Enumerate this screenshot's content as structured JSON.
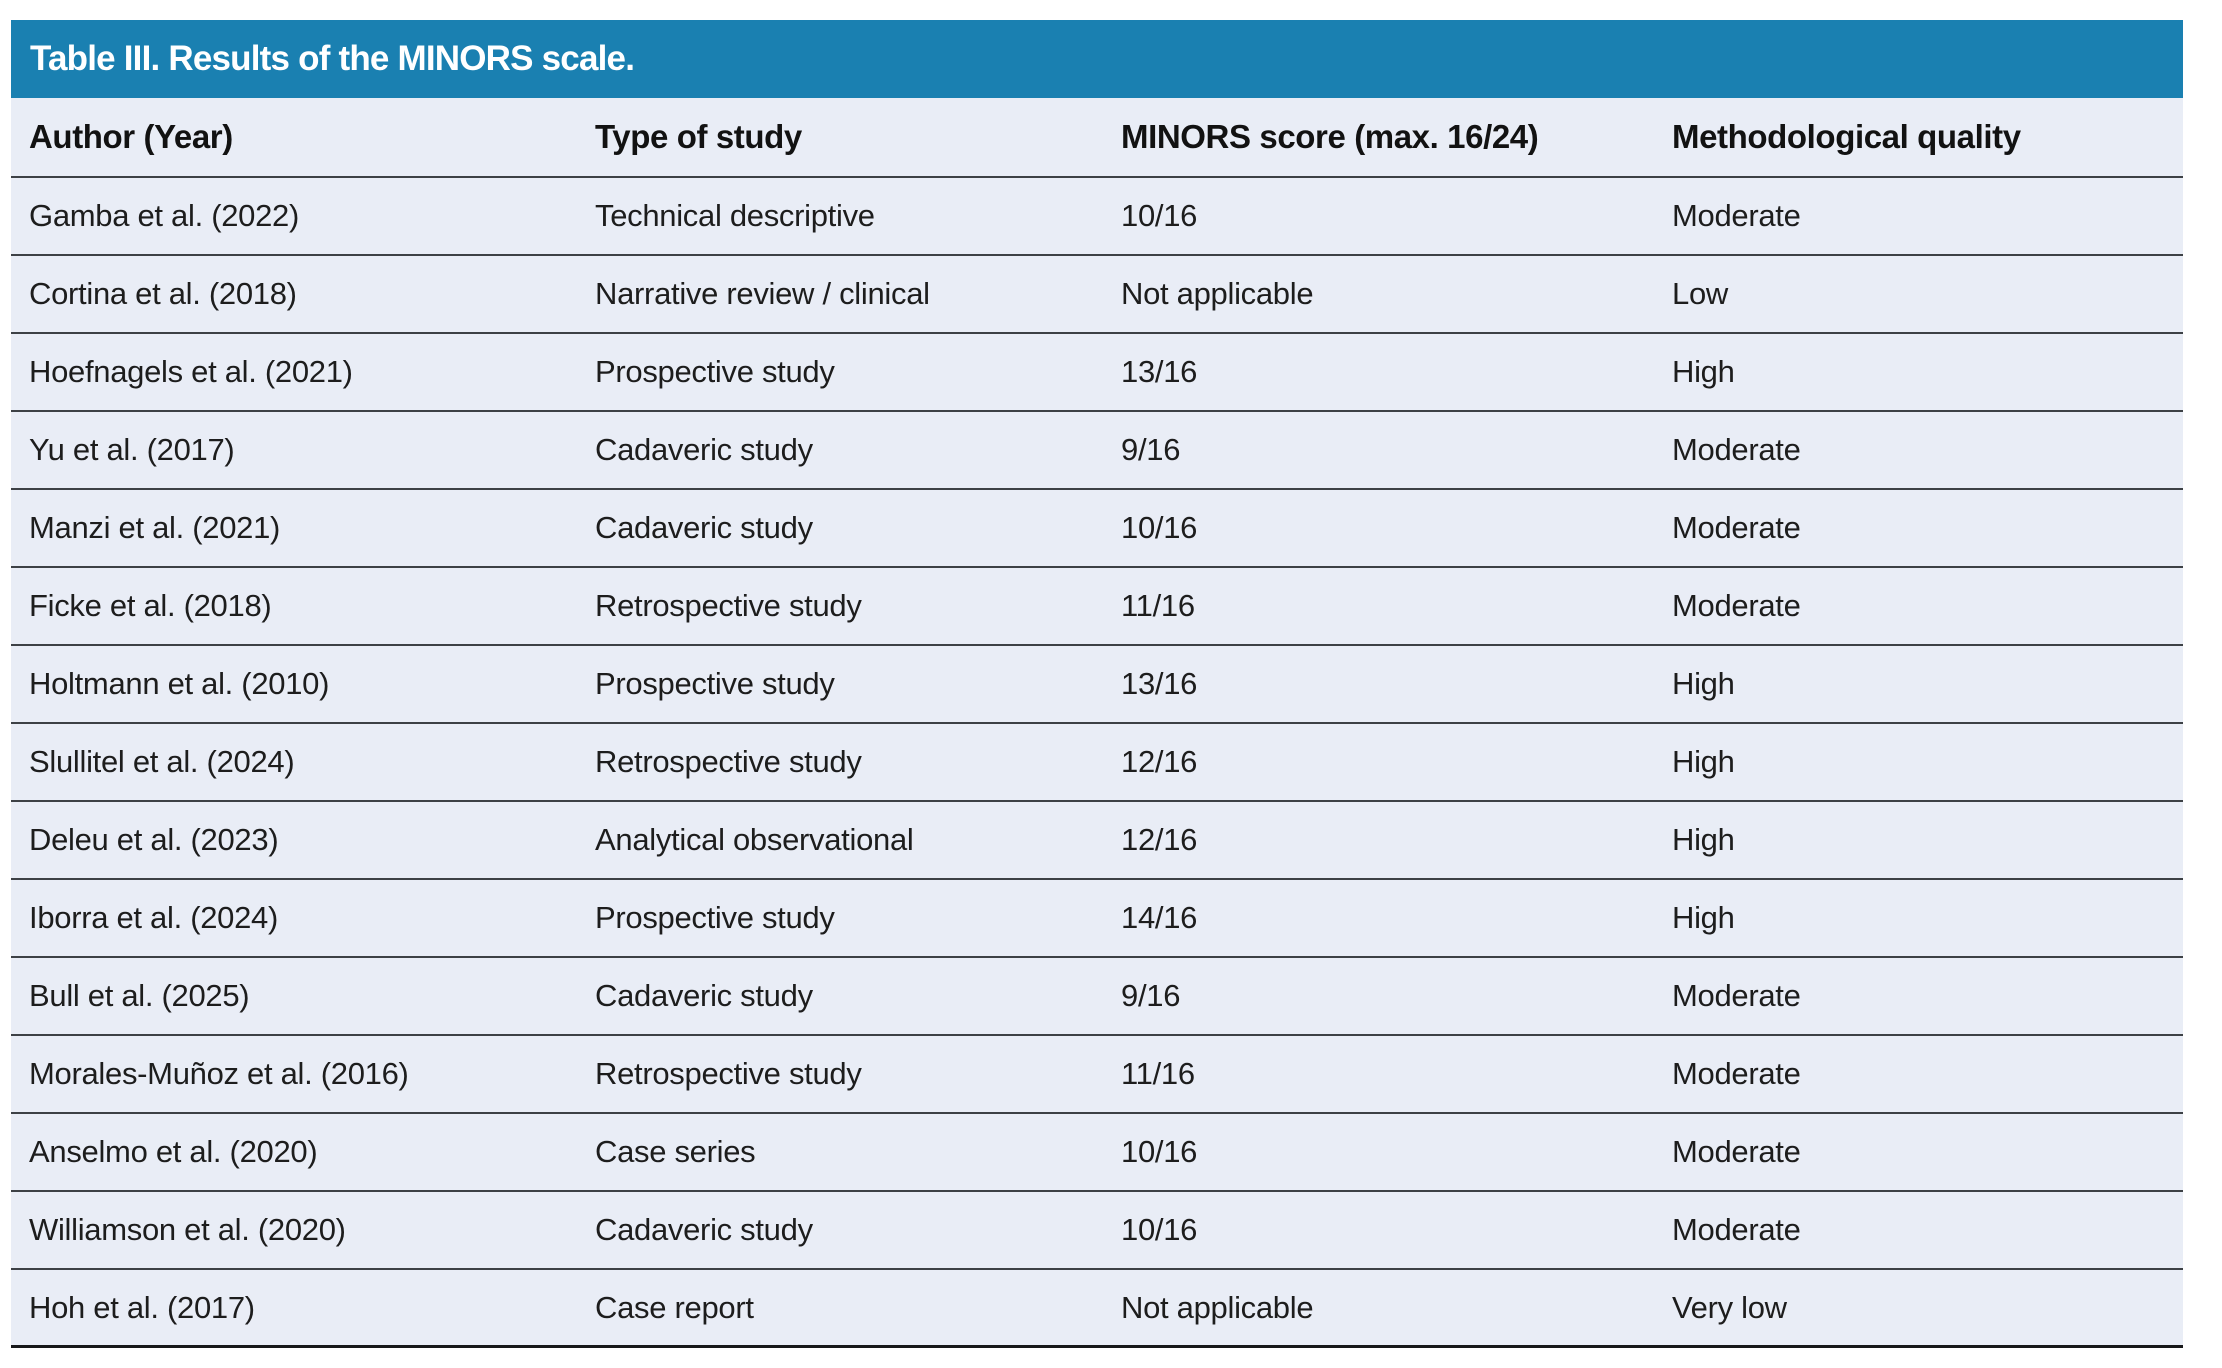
{
  "colors": {
    "accent": "#1a80b1",
    "row_background": "#e9edf6",
    "divider": "#3d4145",
    "title_text": "#ffffff",
    "body_text": "#1d1d1d"
  },
  "table": {
    "title": "Table III. Results of the MINORS scale.",
    "columns": [
      "Author (Year)",
      "Type of study",
      "MINORS score (max. 16/24)",
      "Methodological quality"
    ],
    "rows": [
      [
        "Gamba et al. (2022)",
        "Technical descriptive",
        "10/16",
        "Moderate"
      ],
      [
        "Cortina et al. (2018)",
        "Narrative review / clinical",
        "Not applicable",
        "Low"
      ],
      [
        "Hoefnagels et al. (2021)",
        "Prospective study",
        "13/16",
        "High"
      ],
      [
        "Yu et al. (2017)",
        "Cadaveric study",
        "9/16",
        "Moderate"
      ],
      [
        "Manzi et al. (2021)",
        "Cadaveric study",
        "10/16",
        "Moderate"
      ],
      [
        "Ficke et al. (2018)",
        "Retrospective study",
        "11/16",
        "Moderate"
      ],
      [
        "Holtmann et al. (2010)",
        "Prospective study",
        "13/16",
        "High"
      ],
      [
        "Slullitel et al. (2024)",
        "Retrospective study",
        "12/16",
        "High"
      ],
      [
        "Deleu et al. (2023)",
        "Analytical observational",
        "12/16",
        "High"
      ],
      [
        "Iborra et al. (2024)",
        "Prospective study",
        "14/16",
        "High"
      ],
      [
        "Bull et al. (2025)",
        "Cadaveric study",
        "9/16",
        "Moderate"
      ],
      [
        "Morales-Muñoz et al. (2016)",
        "Retrospective study",
        "11/16",
        "Moderate"
      ],
      [
        "Anselmo et al. (2020)",
        "Case series",
        "10/16",
        "Moderate"
      ],
      [
        "Williamson et al. (2020)",
        "Cadaveric study",
        "10/16",
        "Moderate"
      ],
      [
        "Hoh et al. (2017)",
        "Case report",
        "Not applicable",
        "Very low"
      ]
    ]
  }
}
